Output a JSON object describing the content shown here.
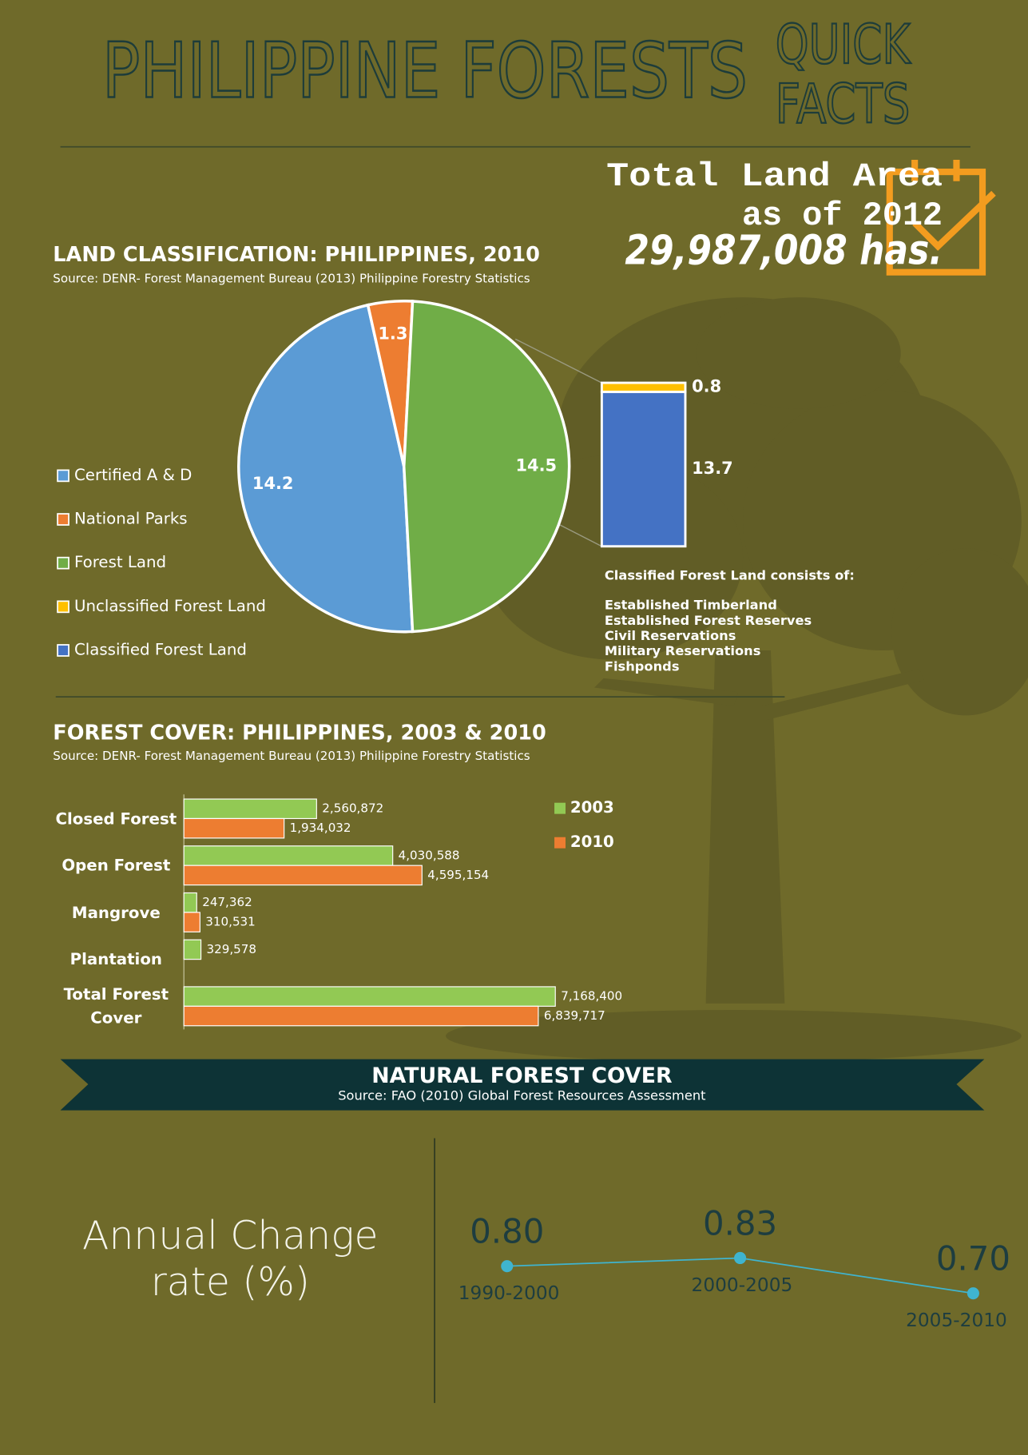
{
  "header": {
    "title": "PHILIPPINE FORESTS",
    "tagline": [
      "QUICK",
      "FACTS"
    ]
  },
  "land_area": {
    "label": "Total Land Area",
    "year": "as of 2012",
    "value": "29,987,008 has."
  },
  "chart_data": [
    {
      "type": "pie",
      "title": "LAND CLASSIFICATION: PHILIPPINES, 2010",
      "subtitle": "Source: DENR- Forest Management Bureau (2013) Philippine Forestry Statistics",
      "categories": [
        "Certified A & D",
        "National Parks",
        "Forest Land"
      ],
      "values": [
        14.2,
        1.3,
        14.5
      ],
      "colors": [
        "#5b9bd5",
        "#ed7d31",
        "#70ad47"
      ]
    },
    {
      "type": "stacked_bar",
      "categories": [
        "Unclassified Forest Land",
        "Classified Forest Land"
      ],
      "values": [
        0.8,
        13.7
      ],
      "colors": [
        "#ffc000",
        "#4472c4"
      ],
      "note_title": "Classified Forest Land consists of:",
      "note_items": [
        "Established Timberland",
        "Established Forest Reserves",
        "Civil Reservations",
        "Military Reservations",
        "Fishponds"
      ]
    },
    {
      "type": "bar",
      "title": "FOREST COVER: PHILIPPINES, 2003 & 2010",
      "subtitle": "Source: DENR- Forest Management Bureau (2013) Philippine Forestry Statistics",
      "categories": [
        "Closed Forest",
        "Open Forest",
        "Mangrove",
        "Plantation",
        "Total Forest Cover"
      ],
      "series": [
        {
          "name": "2003",
          "color": "#92c954",
          "values": [
            2560872,
            4030588,
            247362,
            329578,
            7168400
          ],
          "value_labels": [
            "2,560,872",
            "4,030,588",
            "247,362",
            "329,578",
            "7,168,400"
          ]
        },
        {
          "name": "2010",
          "color": "#ed7d31",
          "values": [
            1934032,
            4595154,
            310531,
            null,
            6839717
          ],
          "value_labels": [
            "1,934,032",
            "4,595,154",
            "310,531",
            null,
            "6,839,717"
          ]
        }
      ]
    },
    {
      "type": "line",
      "title": "NATURAL FOREST COVER",
      "subtitle": "Source: FAO (2010) Global Forest Resources Assessment",
      "y_label": "Annual Change rate (%)",
      "categories": [
        "1990-2000",
        "2000-2005",
        "2005-2010"
      ],
      "values": [
        0.8,
        0.83,
        0.7
      ],
      "value_labels": [
        "0.80",
        "0.83",
        "0.70"
      ],
      "color": "#3fb4cf"
    }
  ]
}
